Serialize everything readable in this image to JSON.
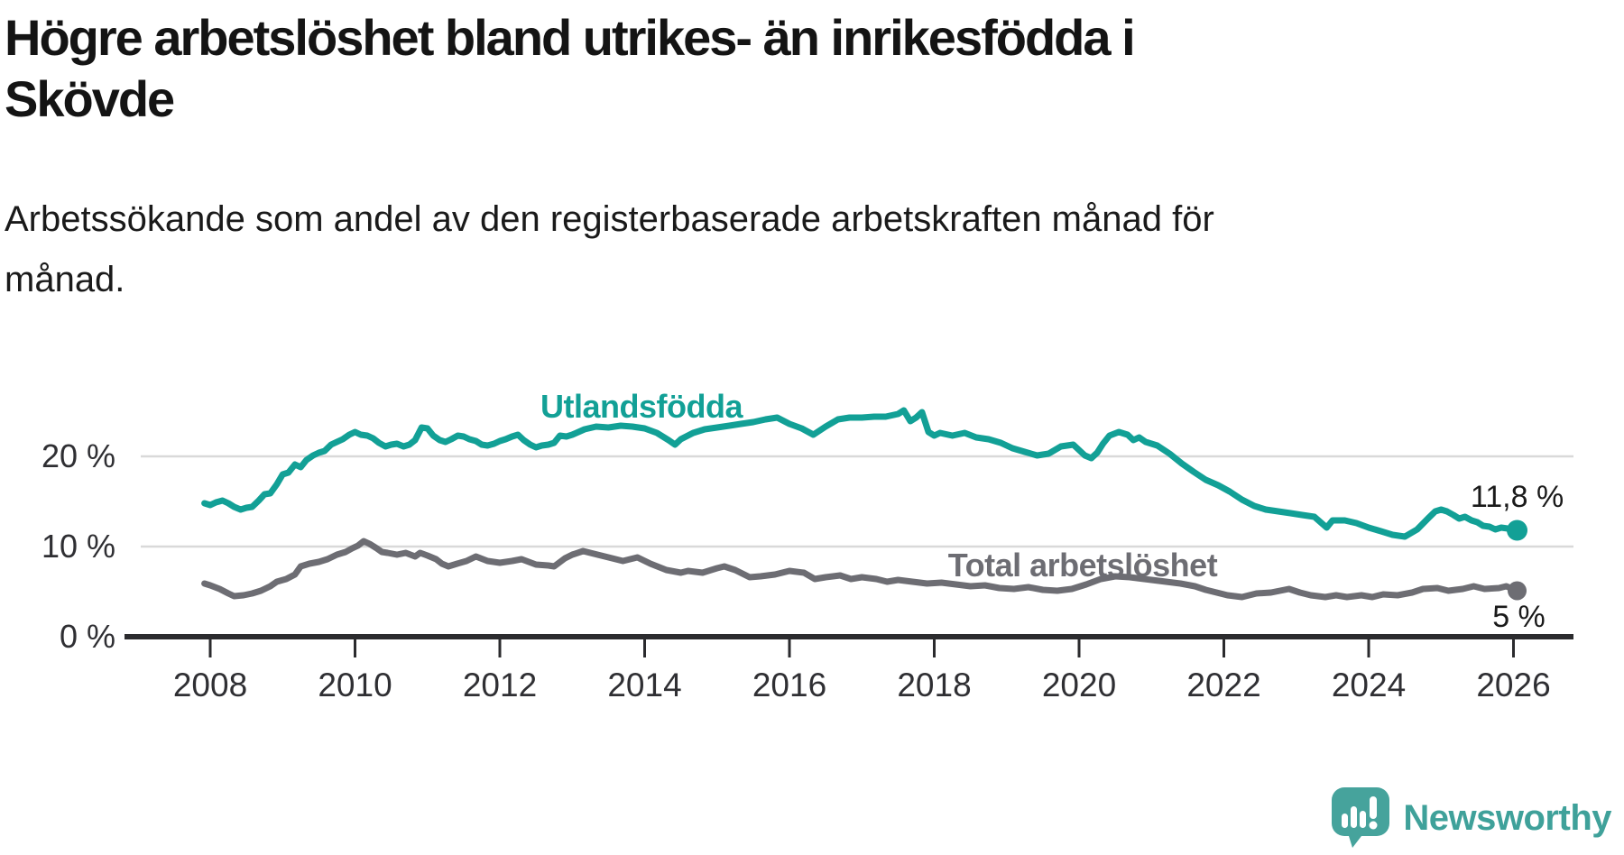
{
  "header": {
    "title": "Högre arbetslöshet bland utrikes- än inrikesfödda i Skövde",
    "title_lines": [
      "Högre arbetslöshet bland utrikes- än inrikesfödda i",
      "Skövde"
    ],
    "subtitle_lines": [
      "Arbetssökande som andel av den registerbaserade arbetskraften månad för",
      "månad."
    ]
  },
  "branding": {
    "logo_text": "Newsworthy",
    "logo_icon": "newsworthy-chart-bubble-icon"
  },
  "colors": {
    "utlandsfodda": "#12a096",
    "total": "#6d6d73",
    "gridline": "#d9d9d9",
    "axis": "#2b2b2e",
    "axis_text": "#2f2f33",
    "value_label_text": "#1a1a1a",
    "logo_bubble": "#46a39c",
    "logo_text": "#3fa19a"
  },
  "chart_data": {
    "type": "line",
    "title": "Högre arbetslöshet bland utrikes- än inrikesfödda i Skövde",
    "subtitle": "Arbetssökande som andel av den registerbaserade arbetskraften månad för månad.",
    "unit": "%",
    "grid": "horizontal",
    "legend_position": "inline-labels",
    "xlim": [
      2007.8,
      2026.7
    ],
    "ylim": [
      0,
      26
    ],
    "yticks": [
      {
        "value": 0,
        "label": "0 %"
      },
      {
        "value": 10,
        "label": "10 %"
      },
      {
        "value": 20,
        "label": "20 %"
      }
    ],
    "xticks": [
      {
        "value": 2008,
        "label": "2008"
      },
      {
        "value": 2010,
        "label": "2010"
      },
      {
        "value": 2012,
        "label": "2012"
      },
      {
        "value": 2014,
        "label": "2014"
      },
      {
        "value": 2016,
        "label": "2016"
      },
      {
        "value": 2018,
        "label": "2018"
      },
      {
        "value": 2020,
        "label": "2020"
      },
      {
        "value": 2022,
        "label": "2022"
      },
      {
        "value": 2024,
        "label": "2024"
      },
      {
        "value": 2026,
        "label": "2026"
      }
    ],
    "series": [
      {
        "id": "utlandsfodda",
        "name": "Utlandsfödda",
        "label": "Utlandsfödda",
        "color": "#12a096",
        "end_label": "11,8 %",
        "end_value": 11.8,
        "points": [
          [
            2007.92,
            14.8
          ],
          [
            2008.0,
            14.6
          ],
          [
            2008.08,
            14.9
          ],
          [
            2008.17,
            15.1
          ],
          [
            2008.25,
            14.8
          ],
          [
            2008.33,
            14.4
          ],
          [
            2008.42,
            14.1
          ],
          [
            2008.5,
            14.3
          ],
          [
            2008.58,
            14.4
          ],
          [
            2008.67,
            15.1
          ],
          [
            2008.75,
            15.8
          ],
          [
            2008.83,
            15.9
          ],
          [
            2008.92,
            16.9
          ],
          [
            2009.0,
            18.0
          ],
          [
            2009.08,
            18.2
          ],
          [
            2009.17,
            19.1
          ],
          [
            2009.25,
            18.8
          ],
          [
            2009.33,
            19.6
          ],
          [
            2009.42,
            20.1
          ],
          [
            2009.5,
            20.4
          ],
          [
            2009.58,
            20.6
          ],
          [
            2009.67,
            21.3
          ],
          [
            2009.75,
            21.6
          ],
          [
            2009.83,
            21.9
          ],
          [
            2009.92,
            22.4
          ],
          [
            2010.0,
            22.7
          ],
          [
            2010.08,
            22.4
          ],
          [
            2010.17,
            22.3
          ],
          [
            2010.25,
            22.0
          ],
          [
            2010.33,
            21.5
          ],
          [
            2010.42,
            21.1
          ],
          [
            2010.5,
            21.3
          ],
          [
            2010.58,
            21.4
          ],
          [
            2010.67,
            21.1
          ],
          [
            2010.75,
            21.3
          ],
          [
            2010.83,
            21.8
          ],
          [
            2010.92,
            23.2
          ],
          [
            2011.0,
            23.1
          ],
          [
            2011.08,
            22.3
          ],
          [
            2011.17,
            21.8
          ],
          [
            2011.25,
            21.6
          ],
          [
            2011.33,
            21.9
          ],
          [
            2011.42,
            22.3
          ],
          [
            2011.5,
            22.2
          ],
          [
            2011.58,
            21.9
          ],
          [
            2011.67,
            21.7
          ],
          [
            2011.75,
            21.3
          ],
          [
            2011.83,
            21.2
          ],
          [
            2011.92,
            21.4
          ],
          [
            2012.0,
            21.7
          ],
          [
            2012.08,
            21.9
          ],
          [
            2012.17,
            22.2
          ],
          [
            2012.25,
            22.4
          ],
          [
            2012.33,
            21.8
          ],
          [
            2012.42,
            21.3
          ],
          [
            2012.5,
            21.0
          ],
          [
            2012.58,
            21.2
          ],
          [
            2012.67,
            21.3
          ],
          [
            2012.75,
            21.5
          ],
          [
            2012.83,
            22.3
          ],
          [
            2012.92,
            22.2
          ],
          [
            2013.0,
            22.4
          ],
          [
            2013.17,
            23.0
          ],
          [
            2013.33,
            23.3
          ],
          [
            2013.5,
            23.2
          ],
          [
            2013.67,
            23.4
          ],
          [
            2013.83,
            23.3
          ],
          [
            2014.0,
            23.1
          ],
          [
            2014.17,
            22.6
          ],
          [
            2014.33,
            21.8
          ],
          [
            2014.42,
            21.3
          ],
          [
            2014.5,
            21.9
          ],
          [
            2014.67,
            22.6
          ],
          [
            2014.83,
            23.0
          ],
          [
            2015.0,
            23.2
          ],
          [
            2015.17,
            23.4
          ],
          [
            2015.33,
            23.6
          ],
          [
            2015.5,
            23.8
          ],
          [
            2015.67,
            24.1
          ],
          [
            2015.83,
            24.3
          ],
          [
            2016.0,
            23.6
          ],
          [
            2016.17,
            23.1
          ],
          [
            2016.33,
            22.4
          ],
          [
            2016.5,
            23.3
          ],
          [
            2016.67,
            24.1
          ],
          [
            2016.83,
            24.3
          ],
          [
            2017.0,
            24.3
          ],
          [
            2017.17,
            24.4
          ],
          [
            2017.33,
            24.4
          ],
          [
            2017.5,
            24.7
          ],
          [
            2017.58,
            25.1
          ],
          [
            2017.67,
            23.9
          ],
          [
            2017.75,
            24.3
          ],
          [
            2017.83,
            24.9
          ],
          [
            2017.92,
            22.7
          ],
          [
            2018.0,
            22.3
          ],
          [
            2018.08,
            22.6
          ],
          [
            2018.25,
            22.3
          ],
          [
            2018.42,
            22.6
          ],
          [
            2018.58,
            22.1
          ],
          [
            2018.75,
            21.9
          ],
          [
            2018.92,
            21.5
          ],
          [
            2019.08,
            20.9
          ],
          [
            2019.25,
            20.5
          ],
          [
            2019.42,
            20.1
          ],
          [
            2019.58,
            20.3
          ],
          [
            2019.75,
            21.1
          ],
          [
            2019.92,
            21.3
          ],
          [
            2020.08,
            20.1
          ],
          [
            2020.17,
            19.8
          ],
          [
            2020.25,
            20.4
          ],
          [
            2020.33,
            21.4
          ],
          [
            2020.42,
            22.3
          ],
          [
            2020.55,
            22.7
          ],
          [
            2020.67,
            22.4
          ],
          [
            2020.75,
            21.8
          ],
          [
            2020.83,
            22.1
          ],
          [
            2020.92,
            21.6
          ],
          [
            2021.08,
            21.2
          ],
          [
            2021.25,
            20.3
          ],
          [
            2021.42,
            19.2
          ],
          [
            2021.58,
            18.3
          ],
          [
            2021.75,
            17.4
          ],
          [
            2021.92,
            16.8
          ],
          [
            2022.08,
            16.1
          ],
          [
            2022.25,
            15.2
          ],
          [
            2022.42,
            14.5
          ],
          [
            2022.58,
            14.1
          ],
          [
            2022.75,
            13.9
          ],
          [
            2022.92,
            13.7
          ],
          [
            2023.08,
            13.5
          ],
          [
            2023.25,
            13.3
          ],
          [
            2023.42,
            12.1
          ],
          [
            2023.5,
            12.9
          ],
          [
            2023.67,
            12.9
          ],
          [
            2023.83,
            12.6
          ],
          [
            2024.0,
            12.1
          ],
          [
            2024.17,
            11.7
          ],
          [
            2024.33,
            11.3
          ],
          [
            2024.5,
            11.1
          ],
          [
            2024.67,
            11.9
          ],
          [
            2024.83,
            13.2
          ],
          [
            2024.92,
            13.9
          ],
          [
            2025.0,
            14.1
          ],
          [
            2025.08,
            13.9
          ],
          [
            2025.17,
            13.5
          ],
          [
            2025.25,
            13.1
          ],
          [
            2025.33,
            13.3
          ],
          [
            2025.42,
            12.9
          ],
          [
            2025.5,
            12.7
          ],
          [
            2025.58,
            12.3
          ],
          [
            2025.67,
            12.2
          ],
          [
            2025.75,
            11.9
          ],
          [
            2025.83,
            12.1
          ],
          [
            2025.92,
            12.0
          ],
          [
            2026.05,
            11.8
          ]
        ]
      },
      {
        "id": "total-arbetsloshet",
        "name": "Total arbetslöshet",
        "label": "Total arbetslöshet",
        "color": "#6d6d73",
        "end_label": "5 %",
        "end_value": 5,
        "points": [
          [
            2007.92,
            5.9
          ],
          [
            2008.0,
            5.7
          ],
          [
            2008.13,
            5.3
          ],
          [
            2008.25,
            4.8
          ],
          [
            2008.33,
            4.5
          ],
          [
            2008.46,
            4.6
          ],
          [
            2008.58,
            4.8
          ],
          [
            2008.7,
            5.1
          ],
          [
            2008.83,
            5.6
          ],
          [
            2008.92,
            6.1
          ],
          [
            2009.05,
            6.4
          ],
          [
            2009.17,
            6.9
          ],
          [
            2009.25,
            7.8
          ],
          [
            2009.37,
            8.1
          ],
          [
            2009.5,
            8.3
          ],
          [
            2009.62,
            8.6
          ],
          [
            2009.75,
            9.1
          ],
          [
            2009.87,
            9.4
          ],
          [
            2009.96,
            9.8
          ],
          [
            2010.04,
            10.1
          ],
          [
            2010.12,
            10.6
          ],
          [
            2010.2,
            10.3
          ],
          [
            2010.3,
            9.8
          ],
          [
            2010.37,
            9.4
          ],
          [
            2010.45,
            9.3
          ],
          [
            2010.58,
            9.1
          ],
          [
            2010.7,
            9.3
          ],
          [
            2010.83,
            8.9
          ],
          [
            2010.9,
            9.3
          ],
          [
            2011.0,
            9.0
          ],
          [
            2011.12,
            8.6
          ],
          [
            2011.2,
            8.1
          ],
          [
            2011.29,
            7.8
          ],
          [
            2011.41,
            8.1
          ],
          [
            2011.54,
            8.4
          ],
          [
            2011.67,
            8.9
          ],
          [
            2011.83,
            8.4
          ],
          [
            2012.0,
            8.2
          ],
          [
            2012.17,
            8.4
          ],
          [
            2012.3,
            8.6
          ],
          [
            2012.5,
            8.0
          ],
          [
            2012.67,
            7.9
          ],
          [
            2012.75,
            7.8
          ],
          [
            2012.9,
            8.7
          ],
          [
            2013.0,
            9.1
          ],
          [
            2013.15,
            9.5
          ],
          [
            2013.3,
            9.2
          ],
          [
            2013.5,
            8.8
          ],
          [
            2013.7,
            8.4
          ],
          [
            2013.9,
            8.8
          ],
          [
            2014.08,
            8.1
          ],
          [
            2014.3,
            7.4
          ],
          [
            2014.5,
            7.1
          ],
          [
            2014.6,
            7.3
          ],
          [
            2014.8,
            7.1
          ],
          [
            2015.0,
            7.6
          ],
          [
            2015.1,
            7.8
          ],
          [
            2015.25,
            7.4
          ],
          [
            2015.45,
            6.6
          ],
          [
            2015.6,
            6.7
          ],
          [
            2015.8,
            6.9
          ],
          [
            2016.0,
            7.3
          ],
          [
            2016.2,
            7.1
          ],
          [
            2016.35,
            6.4
          ],
          [
            2016.5,
            6.6
          ],
          [
            2016.7,
            6.8
          ],
          [
            2016.85,
            6.4
          ],
          [
            2017.0,
            6.6
          ],
          [
            2017.2,
            6.4
          ],
          [
            2017.35,
            6.1
          ],
          [
            2017.5,
            6.3
          ],
          [
            2017.7,
            6.1
          ],
          [
            2017.9,
            5.9
          ],
          [
            2018.1,
            6.0
          ],
          [
            2018.3,
            5.8
          ],
          [
            2018.5,
            5.6
          ],
          [
            2018.7,
            5.7
          ],
          [
            2018.9,
            5.4
          ],
          [
            2019.1,
            5.3
          ],
          [
            2019.3,
            5.5
          ],
          [
            2019.5,
            5.2
          ],
          [
            2019.7,
            5.1
          ],
          [
            2019.9,
            5.3
          ],
          [
            2020.1,
            5.8
          ],
          [
            2020.3,
            6.4
          ],
          [
            2020.5,
            6.7
          ],
          [
            2020.7,
            6.6
          ],
          [
            2020.9,
            6.4
          ],
          [
            2021.0,
            6.3
          ],
          [
            2021.2,
            6.1
          ],
          [
            2021.4,
            5.9
          ],
          [
            2021.6,
            5.6
          ],
          [
            2021.75,
            5.2
          ],
          [
            2021.9,
            4.9
          ],
          [
            2022.05,
            4.6
          ],
          [
            2022.25,
            4.4
          ],
          [
            2022.45,
            4.8
          ],
          [
            2022.65,
            4.9
          ],
          [
            2022.9,
            5.3
          ],
          [
            2023.05,
            4.9
          ],
          [
            2023.2,
            4.6
          ],
          [
            2023.4,
            4.4
          ],
          [
            2023.55,
            4.6
          ],
          [
            2023.7,
            4.4
          ],
          [
            2023.9,
            4.6
          ],
          [
            2024.05,
            4.4
          ],
          [
            2024.2,
            4.7
          ],
          [
            2024.4,
            4.6
          ],
          [
            2024.6,
            4.9
          ],
          [
            2024.75,
            5.3
          ],
          [
            2024.95,
            5.4
          ],
          [
            2025.1,
            5.1
          ],
          [
            2025.3,
            5.3
          ],
          [
            2025.45,
            5.6
          ],
          [
            2025.6,
            5.3
          ],
          [
            2025.8,
            5.4
          ],
          [
            2025.9,
            5.6
          ],
          [
            2026.05,
            5.1
          ]
        ]
      }
    ]
  }
}
